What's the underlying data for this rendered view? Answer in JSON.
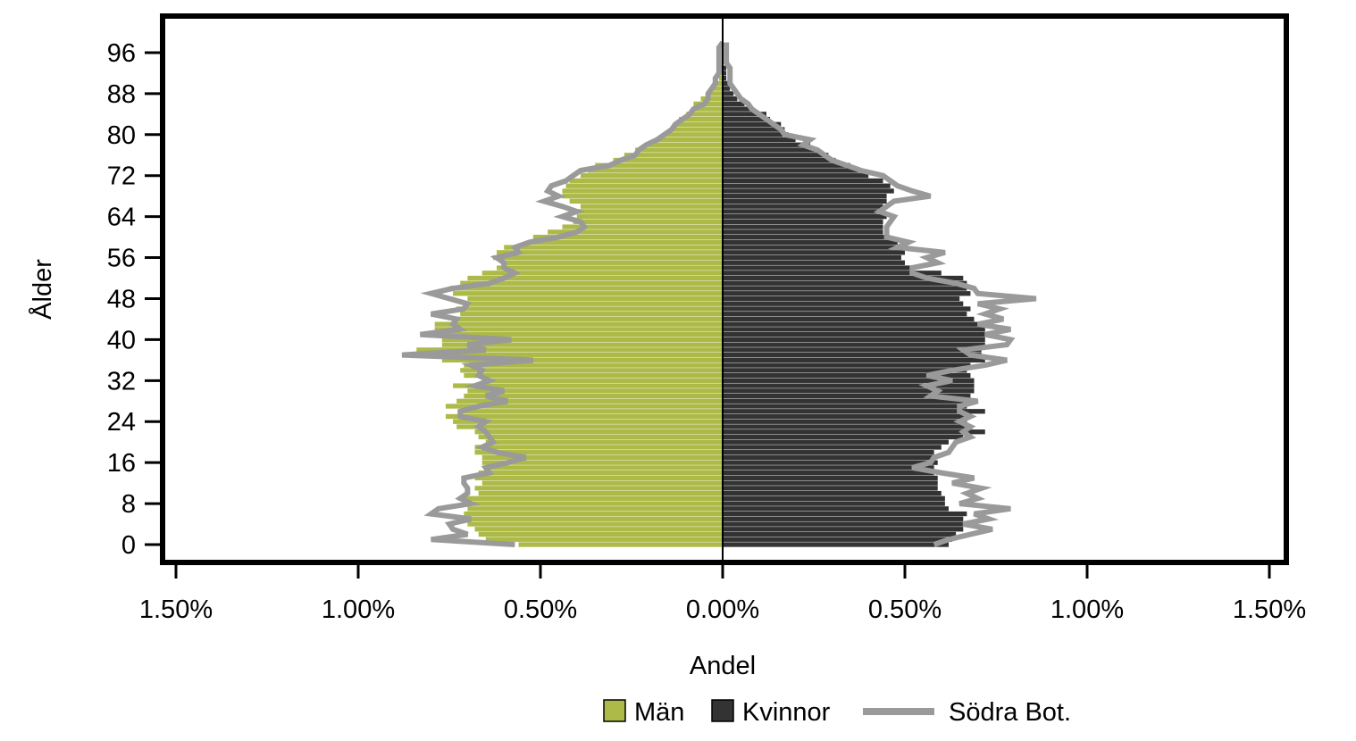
{
  "chart_data": {
    "type": "bar",
    "orientation": "horizontal-population-pyramid",
    "xlabel": "Andel",
    "ylabel": "Ålder",
    "xlim": [
      -1.5,
      1.5
    ],
    "ylim": [
      0,
      99
    ],
    "x_ticks": [
      -1.5,
      -1.0,
      -0.5,
      0.0,
      0.5,
      1.0,
      1.5
    ],
    "x_tick_labels": [
      "1.50%",
      "1.00%",
      "0.50%",
      "0.00%",
      "0.50%",
      "1.00%",
      "1.50%"
    ],
    "y_ticks": [
      0,
      8,
      16,
      24,
      32,
      40,
      48,
      56,
      64,
      72,
      80,
      88,
      96
    ],
    "y_tick_labels": [
      "0",
      "8",
      "16",
      "24",
      "32",
      "40",
      "48",
      "56",
      "64",
      "72",
      "80",
      "88",
      "96"
    ],
    "ages": [
      0,
      1,
      2,
      3,
      4,
      5,
      6,
      7,
      8,
      9,
      10,
      11,
      12,
      13,
      14,
      15,
      16,
      17,
      18,
      19,
      20,
      21,
      22,
      23,
      24,
      25,
      26,
      27,
      28,
      29,
      30,
      31,
      32,
      33,
      34,
      35,
      36,
      37,
      38,
      39,
      40,
      41,
      42,
      43,
      44,
      45,
      46,
      47,
      48,
      49,
      50,
      51,
      52,
      53,
      54,
      55,
      56,
      57,
      58,
      59,
      60,
      61,
      62,
      63,
      64,
      65,
      66,
      67,
      68,
      69,
      70,
      71,
      72,
      73,
      74,
      75,
      76,
      77,
      78,
      79,
      80,
      81,
      82,
      83,
      84,
      85,
      86,
      87,
      88,
      89,
      90,
      91,
      92,
      93,
      94,
      95,
      96,
      97,
      98
    ],
    "legend": {
      "position": "bottom-right"
    },
    "series": [
      {
        "name": "Män",
        "color": "#adba48",
        "values": [
          0.56,
          0.65,
          0.67,
          0.68,
          0.7,
          0.71,
          0.71,
          0.7,
          0.71,
          0.72,
          0.67,
          0.68,
          0.66,
          0.68,
          0.67,
          0.65,
          0.66,
          0.66,
          0.68,
          0.68,
          0.65,
          0.67,
          0.68,
          0.73,
          0.74,
          0.76,
          0.72,
          0.76,
          0.73,
          0.71,
          0.7,
          0.74,
          0.66,
          0.71,
          0.72,
          0.71,
          0.77,
          0.8,
          0.84,
          0.77,
          0.77,
          0.77,
          0.79,
          0.79,
          0.73,
          0.72,
          0.73,
          0.7,
          0.7,
          0.74,
          0.75,
          0.72,
          0.7,
          0.66,
          0.62,
          0.6,
          0.63,
          0.62,
          0.6,
          0.53,
          0.52,
          0.48,
          0.44,
          0.41,
          0.4,
          0.41,
          0.39,
          0.42,
          0.44,
          0.44,
          0.43,
          0.42,
          0.39,
          0.37,
          0.35,
          0.3,
          0.27,
          0.24,
          0.21,
          0.18,
          0.16,
          0.14,
          0.13,
          0.12,
          0.1,
          0.08,
          0.08,
          0.06,
          0.04,
          0.03,
          0.02,
          0.01,
          0.01,
          0.01,
          0.0,
          0.0,
          0.0,
          0.0,
          0.0
        ]
      },
      {
        "name": "Kvinnor",
        "color": "#333333",
        "values": [
          0.62,
          0.63,
          0.64,
          0.66,
          0.68,
          0.66,
          0.67,
          0.62,
          0.61,
          0.61,
          0.6,
          0.59,
          0.59,
          0.59,
          0.58,
          0.58,
          0.59,
          0.58,
          0.58,
          0.6,
          0.62,
          0.66,
          0.72,
          0.68,
          0.67,
          0.67,
          0.72,
          0.67,
          0.68,
          0.68,
          0.69,
          0.69,
          0.69,
          0.68,
          0.67,
          0.68,
          0.72,
          0.71,
          0.71,
          0.72,
          0.72,
          0.72,
          0.72,
          0.7,
          0.69,
          0.67,
          0.68,
          0.66,
          0.65,
          0.68,
          0.67,
          0.67,
          0.66,
          0.6,
          0.52,
          0.5,
          0.49,
          0.5,
          0.49,
          0.48,
          0.45,
          0.44,
          0.44,
          0.44,
          0.45,
          0.44,
          0.44,
          0.45,
          0.45,
          0.47,
          0.46,
          0.44,
          0.4,
          0.38,
          0.35,
          0.31,
          0.29,
          0.26,
          0.24,
          0.2,
          0.18,
          0.17,
          0.16,
          0.13,
          0.12,
          0.08,
          0.06,
          0.04,
          0.03,
          0.02,
          0.02,
          0.01,
          0.01,
          0.01,
          0.0,
          0.0,
          0.0,
          0.0,
          0.0
        ]
      },
      {
        "name": "Södra Bot.",
        "color": "#9a9a9a",
        "kind": "outline",
        "values_left": [
          0.57,
          0.8,
          0.7,
          0.74,
          0.75,
          0.69,
          0.8,
          0.78,
          0.69,
          0.72,
          0.7,
          0.7,
          0.71,
          0.71,
          0.64,
          0.65,
          0.59,
          0.54,
          0.62,
          0.66,
          0.63,
          0.64,
          0.65,
          0.67,
          0.65,
          0.72,
          0.72,
          0.67,
          0.59,
          0.65,
          0.6,
          0.68,
          0.64,
          0.67,
          0.66,
          0.69,
          0.52,
          0.88,
          0.65,
          0.7,
          0.58,
          0.83,
          0.72,
          0.74,
          0.73,
          0.8,
          0.71,
          0.7,
          0.75,
          0.8,
          0.74,
          0.64,
          0.6,
          0.57,
          0.6,
          0.6,
          0.62,
          0.56,
          0.57,
          0.53,
          0.45,
          0.4,
          0.38,
          0.39,
          0.44,
          0.4,
          0.44,
          0.49,
          0.45,
          0.48,
          0.47,
          0.43,
          0.41,
          0.39,
          0.31,
          0.28,
          0.24,
          0.23,
          0.21,
          0.18,
          0.16,
          0.14,
          0.13,
          0.11,
          0.09,
          0.08,
          0.05,
          0.04,
          0.04,
          0.03,
          0.02,
          0.02,
          0.01,
          0.01,
          0.01,
          0.01,
          0.01,
          0.01,
          0.0
        ],
        "values_right": [
          0.58,
          0.62,
          0.68,
          0.74,
          0.66,
          0.73,
          0.69,
          0.79,
          0.65,
          0.7,
          0.67,
          0.71,
          0.63,
          0.69,
          0.6,
          0.52,
          0.57,
          0.58,
          0.62,
          0.63,
          0.64,
          0.68,
          0.66,
          0.68,
          0.65,
          0.68,
          0.65,
          0.65,
          0.7,
          0.57,
          0.59,
          0.56,
          0.63,
          0.56,
          0.63,
          0.72,
          0.78,
          0.68,
          0.66,
          0.78,
          0.79,
          0.72,
          0.79,
          0.7,
          0.77,
          0.72,
          0.76,
          0.7,
          0.86,
          0.7,
          0.69,
          0.64,
          0.56,
          0.52,
          0.52,
          0.59,
          0.56,
          0.61,
          0.48,
          0.51,
          0.45,
          0.45,
          0.45,
          0.46,
          0.47,
          0.43,
          0.45,
          0.47,
          0.57,
          0.52,
          0.48,
          0.46,
          0.44,
          0.38,
          0.34,
          0.3,
          0.28,
          0.26,
          0.22,
          0.24,
          0.17,
          0.16,
          0.14,
          0.12,
          0.1,
          0.08,
          0.07,
          0.05,
          0.04,
          0.03,
          0.02,
          0.02,
          0.02,
          0.02,
          0.01,
          0.01,
          0.01,
          0.01,
          0.01
        ]
      }
    ]
  }
}
